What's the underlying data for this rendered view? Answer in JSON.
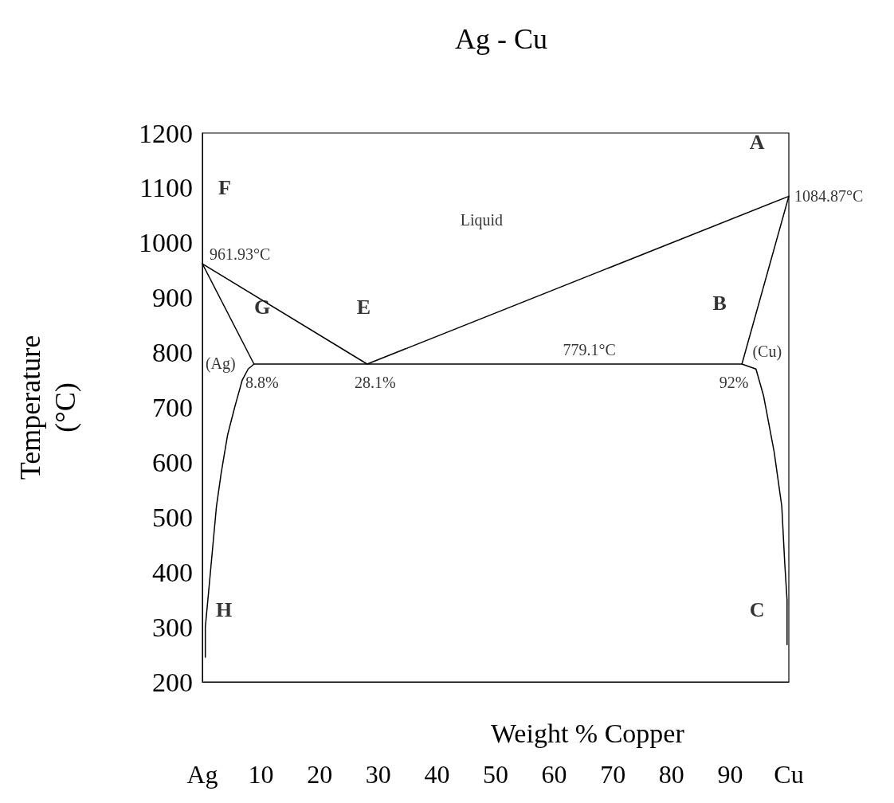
{
  "chart_data": {
    "type": "line",
    "title": "Ag - Cu",
    "xlabel": "Weight % Copper",
    "ylabel": "Temperature\n(°C)",
    "xlim": [
      0,
      100
    ],
    "ylim": [
      200,
      1200
    ],
    "xticks": [
      {
        "value": 0,
        "label": "Ag"
      },
      10,
      20,
      30,
      40,
      50,
      60,
      70,
      80,
      90,
      {
        "value": 100,
        "label": "Cu"
      }
    ],
    "yticks": [
      200,
      300,
      400,
      500,
      600,
      700,
      800,
      900,
      1000,
      1100,
      1200
    ],
    "grid": false,
    "marker": "none",
    "line_style": "solid",
    "series": [
      {
        "color": "#000000",
        "x": [
          0,
          28.1,
          100
        ],
        "values": [
          961.93,
          779.1,
          1084.87
        ]
      },
      {
        "color": "#000000",
        "x": [
          0,
          8.8
        ],
        "values": [
          961.93,
          779.1
        ]
      },
      {
        "color": "#000000",
        "x": [
          0.5,
          0.5,
          1.2,
          2.4,
          3.2,
          4.3,
          5.5,
          6.8,
          7.8,
          8.8,
          92,
          94.4,
          95.7,
          97.5,
          98.8,
          99.3,
          99.7,
          99.7
        ],
        "values": [
          245,
          300,
          380,
          520,
          580,
          650,
          700,
          750,
          770,
          779.1,
          779.1,
          770,
          721,
          619,
          520,
          417,
          349,
          268
        ]
      },
      {
        "color": "#000000",
        "x": [
          92,
          100
        ],
        "values": [
          779.1,
          1084.87
        ]
      }
    ],
    "annotations": [
      "A",
      "F",
      "Liquid",
      {
        "text": "961.93°C",
        "x": 0,
        "y": 961.93
      },
      {
        "text": "1084.87°C",
        "x": 100,
        "y": 1084.87
      },
      "G",
      "E",
      "B",
      "779.1°C",
      "(Ag)",
      "(Cu)",
      {
        "text": "8.8%",
        "x": 8.8,
        "y": 779.1
      },
      {
        "text": "28.1%",
        "x": 28.1,
        "y": 779.1
      },
      {
        "text": "92%",
        "x": 92,
        "y": 779.1
      },
      "H",
      "C"
    ]
  }
}
